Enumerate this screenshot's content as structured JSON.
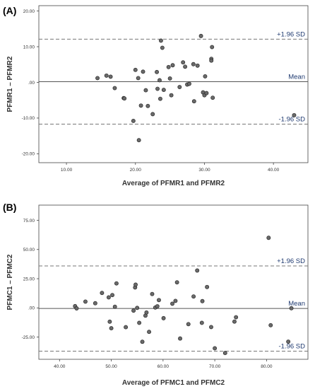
{
  "chart_data": [
    {
      "type": "scatter",
      "panel_label": "(A)",
      "xlabel": "Average of PFMR1 and PFMR2",
      "ylabel": "PFMR1 – PFMR2",
      "xlim": [
        6,
        45
      ],
      "ylim": [
        -22.5,
        21.5
      ],
      "xticks": [
        10,
        20,
        30,
        40
      ],
      "xtick_labels": [
        "10.00",
        "20.00",
        "30.00",
        "40.00"
      ],
      "yticks": [
        20,
        10,
        0,
        -10,
        -20
      ],
      "ytick_labels": [
        "20.00",
        "10.00",
        ".00",
        "-10.00",
        "-20.00"
      ],
      "reference_lines": [
        {
          "label": "+1.96 SD",
          "y": 12.1,
          "style": "dashed"
        },
        {
          "label": "Mean",
          "y": 0.2,
          "style": "solid"
        },
        {
          "label": "-1.96 SD",
          "y": -11.7,
          "style": "dashed"
        }
      ],
      "points": [
        {
          "x": 14.5,
          "y": 1.2
        },
        {
          "x": 15.8,
          "y": 1.9
        },
        {
          "x": 16.4,
          "y": 1.6
        },
        {
          "x": 17.0,
          "y": -1.6
        },
        {
          "x": 18.3,
          "y": -4.4
        },
        {
          "x": 18.4,
          "y": -4.5
        },
        {
          "x": 19.7,
          "y": -10.8
        },
        {
          "x": 20.0,
          "y": 3.5
        },
        {
          "x": 20.4,
          "y": 1.2
        },
        {
          "x": 20.5,
          "y": -16.2
        },
        {
          "x": 20.8,
          "y": -6.5
        },
        {
          "x": 21.1,
          "y": 3.0
        },
        {
          "x": 21.5,
          "y": -2.2
        },
        {
          "x": 21.8,
          "y": -6.6
        },
        {
          "x": 22.5,
          "y": -8.9
        },
        {
          "x": 23.1,
          "y": 2.9
        },
        {
          "x": 23.2,
          "y": -1.8
        },
        {
          "x": 23.5,
          "y": 0.6
        },
        {
          "x": 23.6,
          "y": -4.6
        },
        {
          "x": 23.7,
          "y": 11.7
        },
        {
          "x": 23.9,
          "y": 9.7
        },
        {
          "x": 24.1,
          "y": -2.1
        },
        {
          "x": 24.8,
          "y": 4.3
        },
        {
          "x": 25.0,
          "y": 1.1
        },
        {
          "x": 25.2,
          "y": -3.6
        },
        {
          "x": 25.4,
          "y": 4.8
        },
        {
          "x": 26.4,
          "y": -1.3
        },
        {
          "x": 26.9,
          "y": 5.6
        },
        {
          "x": 27.2,
          "y": 4.4
        },
        {
          "x": 27.5,
          "y": -0.6
        },
        {
          "x": 27.8,
          "y": -0.4
        },
        {
          "x": 28.4,
          "y": 5.1
        },
        {
          "x": 28.5,
          "y": -5.3
        },
        {
          "x": 29.0,
          "y": 4.7
        },
        {
          "x": 29.5,
          "y": 13.0
        },
        {
          "x": 29.8,
          "y": -2.8
        },
        {
          "x": 30.0,
          "y": -3.6
        },
        {
          "x": 30.1,
          "y": 1.7
        },
        {
          "x": 30.3,
          "y": -3.0
        },
        {
          "x": 31.0,
          "y": 6.6
        },
        {
          "x": 31.0,
          "y": 6.1
        },
        {
          "x": 31.1,
          "y": 9.9
        },
        {
          "x": 31.2,
          "y": -4.3
        },
        {
          "x": 43.0,
          "y": -9.2
        }
      ]
    },
    {
      "type": "scatter",
      "panel_label": "(B)",
      "xlabel": "Average of PFMC1 and PFMC2",
      "ylabel": "PFMC1 – PFMC2",
      "xlim": [
        36,
        88
      ],
      "ylim": [
        -44,
        88
      ],
      "xticks": [
        40,
        50,
        60,
        70,
        80
      ],
      "xtick_labels": [
        "40.00",
        "50.00",
        "60.00",
        "70.00",
        "80.00"
      ],
      "yticks": [
        75,
        50,
        25,
        0,
        -25
      ],
      "ytick_labels": [
        "75.00",
        "50.00",
        "25.00",
        ".00",
        "-25.00"
      ],
      "reference_lines": [
        {
          "label": "+1.96 SD",
          "y": 35.9,
          "style": "dashed"
        },
        {
          "label": "Mean",
          "y": -0.5,
          "style": "solid"
        },
        {
          "label": "-1.96 SD",
          "y": -37.0,
          "style": "dashed"
        }
      ],
      "points": [
        {
          "x": 43.0,
          "y": 1.5
        },
        {
          "x": 43.3,
          "y": -0.4
        },
        {
          "x": 45.0,
          "y": 5.4
        },
        {
          "x": 46.9,
          "y": 4.0
        },
        {
          "x": 48.2,
          "y": 12.8
        },
        {
          "x": 49.5,
          "y": 9.0
        },
        {
          "x": 49.7,
          "y": -11.8
        },
        {
          "x": 50.0,
          "y": -17.4
        },
        {
          "x": 50.2,
          "y": 11.0
        },
        {
          "x": 50.7,
          "y": 1.0
        },
        {
          "x": 51.0,
          "y": 21.0
        },
        {
          "x": 52.8,
          "y": -16.5
        },
        {
          "x": 54.3,
          "y": -2.3
        },
        {
          "x": 54.6,
          "y": 17.5
        },
        {
          "x": 54.7,
          "y": 19.9
        },
        {
          "x": 55.0,
          "y": 0.0
        },
        {
          "x": 55.4,
          "y": -12.8
        },
        {
          "x": 56.0,
          "y": -29.0
        },
        {
          "x": 56.6,
          "y": -6.6
        },
        {
          "x": 56.8,
          "y": -3.9
        },
        {
          "x": 57.3,
          "y": -20.5
        },
        {
          "x": 57.9,
          "y": 11.9
        },
        {
          "x": 58.5,
          "y": 0.3
        },
        {
          "x": 58.9,
          "y": 1.4
        },
        {
          "x": 59.2,
          "y": 6.7
        },
        {
          "x": 60.1,
          "y": -8.8
        },
        {
          "x": 61.8,
          "y": 3.6
        },
        {
          "x": 62.4,
          "y": 6.0
        },
        {
          "x": 62.7,
          "y": 21.9
        },
        {
          "x": 63.3,
          "y": -26.2
        },
        {
          "x": 64.9,
          "y": -13.9
        },
        {
          "x": 65.9,
          "y": 9.8
        },
        {
          "x": 66.6,
          "y": 32.0
        },
        {
          "x": 67.5,
          "y": -12.8
        },
        {
          "x": 67.6,
          "y": 5.8
        },
        {
          "x": 68.5,
          "y": 17.9
        },
        {
          "x": 69.3,
          "y": -16.4
        },
        {
          "x": 70.0,
          "y": -34.6
        },
        {
          "x": 72.0,
          "y": -38.6
        },
        {
          "x": 73.8,
          "y": -11.7
        },
        {
          "x": 74.1,
          "y": -8.0
        },
        {
          "x": 80.4,
          "y": 60.0
        },
        {
          "x": 80.8,
          "y": -14.8
        },
        {
          "x": 84.2,
          "y": -28.9
        },
        {
          "x": 84.8,
          "y": -0.3
        }
      ]
    }
  ]
}
